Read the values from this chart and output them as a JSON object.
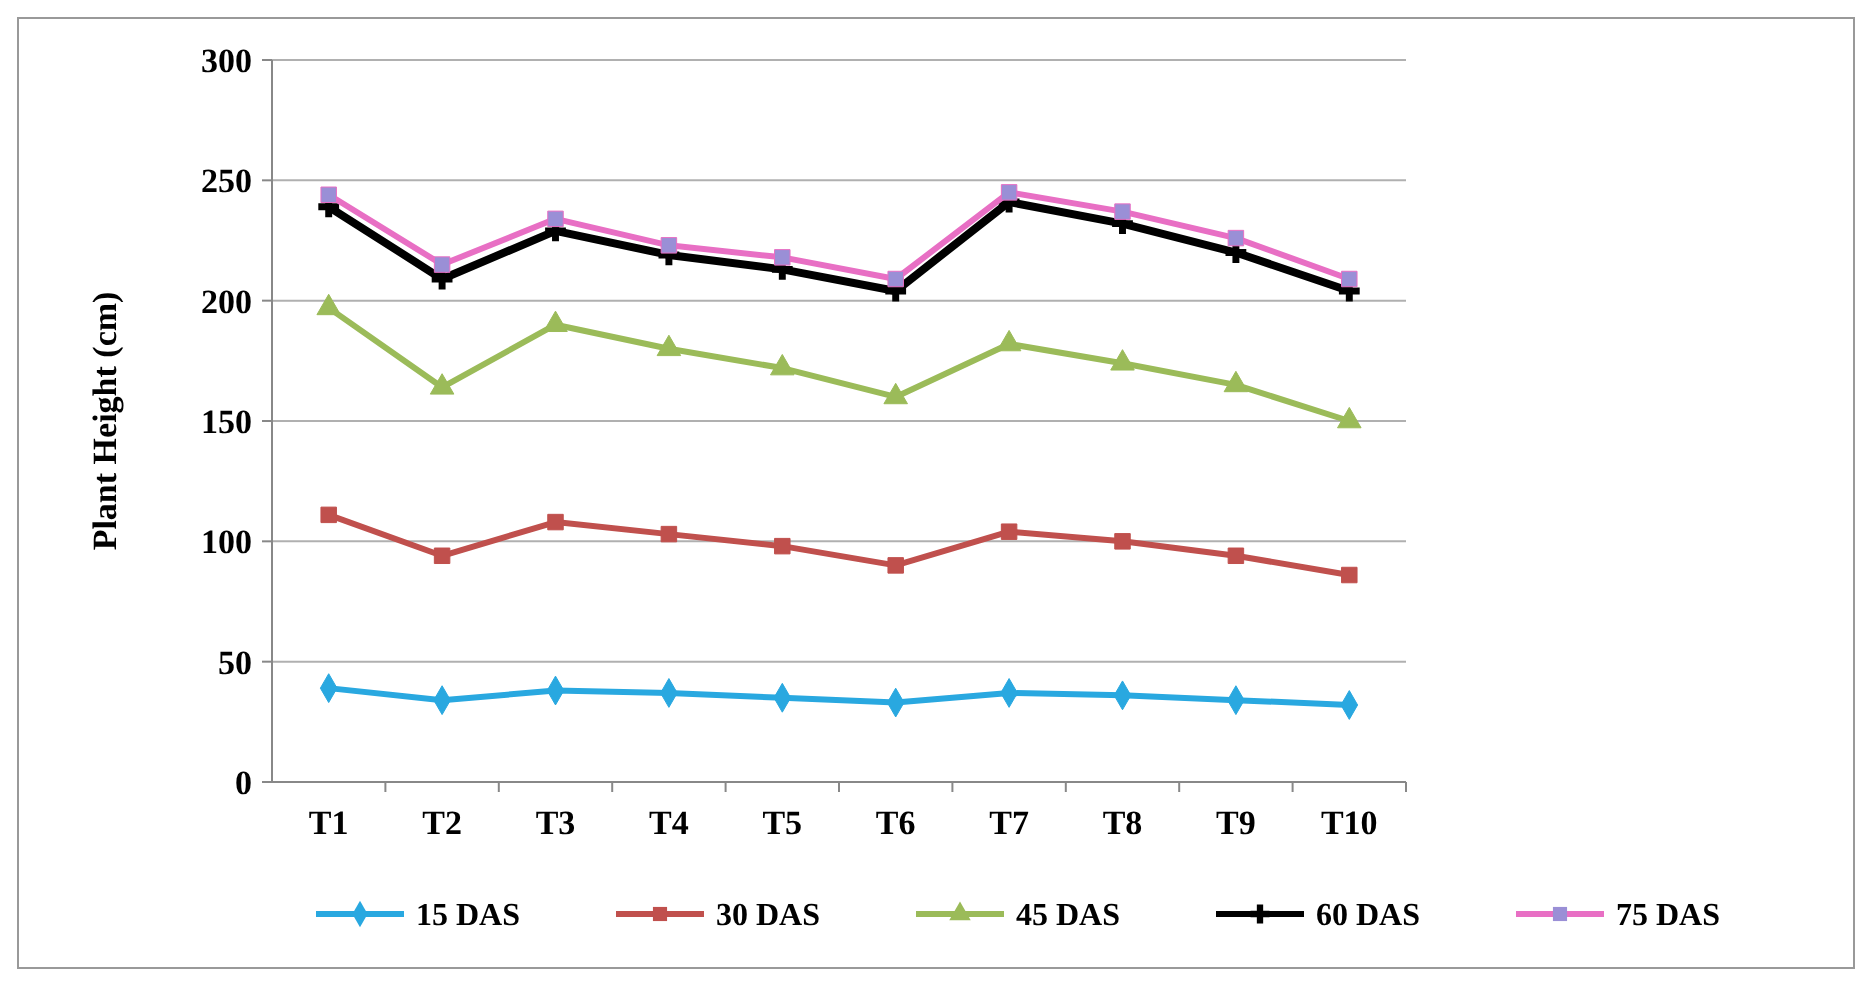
{
  "chart_data": {
    "type": "line",
    "ylabel": "Plant Height (cm)",
    "categories": [
      "T1",
      "T2",
      "T3",
      "T4",
      "T5",
      "T6",
      "T7",
      "T8",
      "T9",
      "T10"
    ],
    "ylim": [
      0,
      300
    ],
    "yticks": [
      0,
      50,
      100,
      150,
      200,
      250,
      300
    ],
    "grid": "y",
    "legend": "bottom",
    "series": [
      {
        "name": "15 DAS",
        "color": "#29a8e0",
        "marker": "diamond",
        "values": [
          39,
          34,
          38,
          37,
          35,
          33,
          37,
          36,
          34,
          32
        ]
      },
      {
        "name": "30 DAS",
        "color": "#c0504d",
        "marker": "square",
        "values": [
          111,
          94,
          108,
          103,
          98,
          90,
          104,
          100,
          94,
          86
        ]
      },
      {
        "name": "45 DAS",
        "color": "#9bbb59",
        "marker": "triangle",
        "values": [
          197,
          164,
          190,
          180,
          172,
          160,
          182,
          174,
          165,
          150
        ]
      },
      {
        "name": "60 DAS",
        "color": "#000000",
        "marker": "cross",
        "values": [
          239,
          209,
          229,
          219,
          213,
          204,
          241,
          232,
          220,
          204
        ]
      },
      {
        "name": "75 DAS",
        "color": "#e86fc4",
        "marker": "square",
        "values": [
          244,
          215,
          234,
          223,
          218,
          209,
          245,
          237,
          226,
          209
        ]
      }
    ]
  }
}
